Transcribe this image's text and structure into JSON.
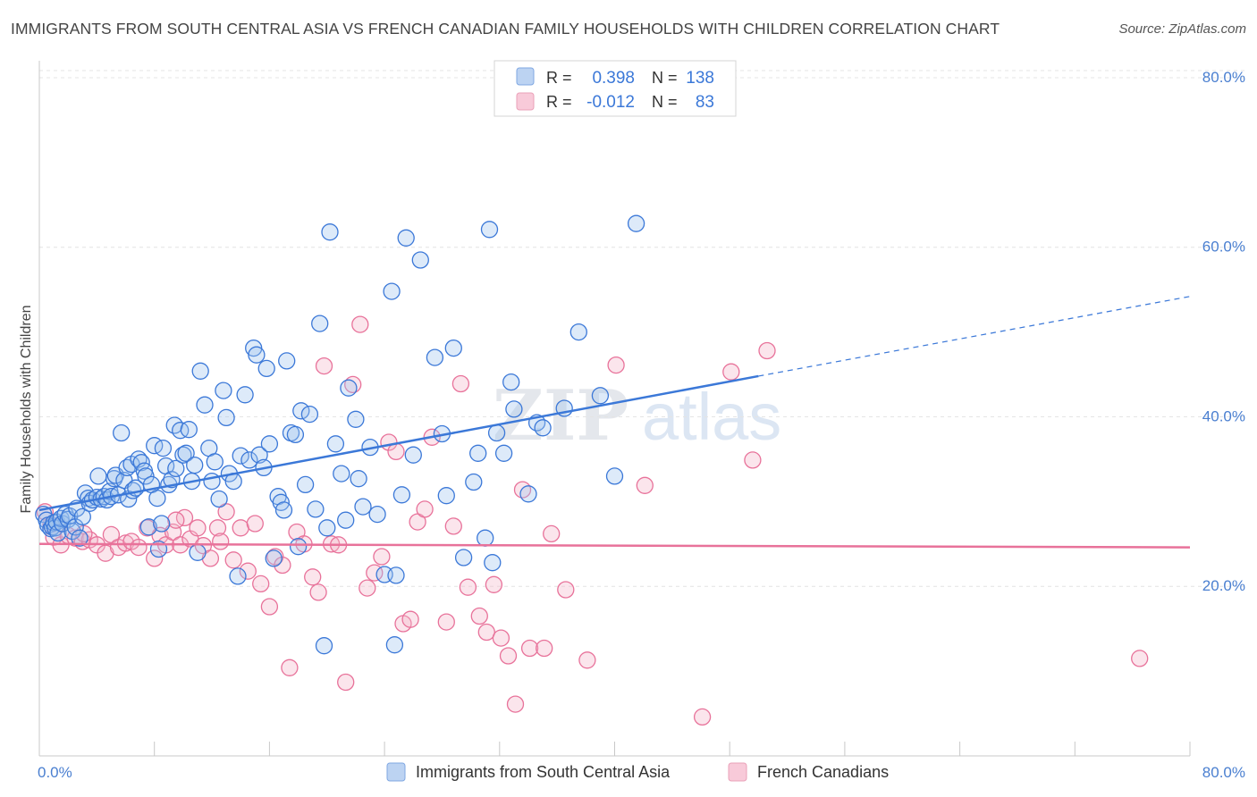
{
  "title": "IMMIGRANTS FROM SOUTH CENTRAL ASIA VS FRENCH CANADIAN FAMILY HOUSEHOLDS WITH CHILDREN CORRELATION CHART",
  "source": "Source: ZipAtlas.com",
  "watermark": {
    "zip": "ZIP",
    "atlas": "atlas"
  },
  "colors": {
    "blue": "#3b78d8",
    "blue_fill": "#9fc2ee",
    "pink": "#e8729a",
    "pink_fill": "#f4b4c8",
    "axis_label": "#4a7fd0",
    "grid": "#e4e4e4"
  },
  "legend": {
    "r_label": "R =",
    "n_label": "N =",
    "rows": [
      {
        "series": "blue",
        "r": "0.398",
        "n": "138"
      },
      {
        "series": "pink",
        "r": "-0.012",
        "n": "83"
      }
    ]
  },
  "chart_data": {
    "type": "scatter",
    "title": "IMMIGRANTS FROM SOUTH CENTRAL ASIA VS FRENCH CANADIAN FAMILY HOUSEHOLDS WITH CHILDREN CORRELATION CHART",
    "xlabel": "",
    "ylabel": "Family Households with Children",
    "xlim": [
      0,
      80
    ],
    "ylim": [
      0,
      82
    ],
    "x_tick_labels": [
      "0.0%",
      "80.0%"
    ],
    "y_ticks": [
      20,
      40,
      60,
      80
    ],
    "y_tick_labels": [
      "20.0%",
      "40.0%",
      "60.0%",
      "80.0%"
    ],
    "legend_position": "top-center",
    "bottom_legend": [
      "Immigrants from South Central Asia",
      "French Canadians"
    ],
    "series": [
      {
        "name": "Immigrants from South Central Asia",
        "color": "#3b78d8",
        "r": 0.398,
        "n": 138,
        "trend": {
          "x": [
            0,
            50
          ],
          "y": [
            29.0,
            44.8
          ],
          "dashed_to": {
            "x": 80,
            "y": 54.2
          }
        },
        "points": [
          [
            0.3,
            28.5
          ],
          [
            0.5,
            27.8
          ],
          [
            0.6,
            27.2
          ],
          [
            0.8,
            26.8
          ],
          [
            0.9,
            27.0
          ],
          [
            1.0,
            27.5
          ],
          [
            1.1,
            26.9
          ],
          [
            1.2,
            27.6
          ],
          [
            1.3,
            26.3
          ],
          [
            1.5,
            28.0
          ],
          [
            1.6,
            27.4
          ],
          [
            1.8,
            28.5
          ],
          [
            2.0,
            27.9
          ],
          [
            2.1,
            28.3
          ],
          [
            2.3,
            26.5
          ],
          [
            2.5,
            27.0
          ],
          [
            2.6,
            29.2
          ],
          [
            2.8,
            25.7
          ],
          [
            3.0,
            28.2
          ],
          [
            3.2,
            31.0
          ],
          [
            3.4,
            30.4
          ],
          [
            3.5,
            29.8
          ],
          [
            3.7,
            30.2
          ],
          [
            4.0,
            30.5
          ],
          [
            4.1,
            33.0
          ],
          [
            4.3,
            30.3
          ],
          [
            4.5,
            30.6
          ],
          [
            4.7,
            30.2
          ],
          [
            4.9,
            31.2
          ],
          [
            5.0,
            30.6
          ],
          [
            5.2,
            32.7
          ],
          [
            5.3,
            33.1
          ],
          [
            5.5,
            30.8
          ],
          [
            5.7,
            38.1
          ],
          [
            5.9,
            32.5
          ],
          [
            6.1,
            34.0
          ],
          [
            6.2,
            30.3
          ],
          [
            6.4,
            34.4
          ],
          [
            6.5,
            31.3
          ],
          [
            6.7,
            31.6
          ],
          [
            6.9,
            35.0
          ],
          [
            7.1,
            34.6
          ],
          [
            7.3,
            33.6
          ],
          [
            7.4,
            33.0
          ],
          [
            7.6,
            27.0
          ],
          [
            7.8,
            32.0
          ],
          [
            8.0,
            36.6
          ],
          [
            8.2,
            30.4
          ],
          [
            8.3,
            24.4
          ],
          [
            8.5,
            27.4
          ],
          [
            8.6,
            36.3
          ],
          [
            8.8,
            34.2
          ],
          [
            9.0,
            32.0
          ],
          [
            9.2,
            32.6
          ],
          [
            9.4,
            39.0
          ],
          [
            9.5,
            33.9
          ],
          [
            9.8,
            38.4
          ],
          [
            10.0,
            35.5
          ],
          [
            10.2,
            35.7
          ],
          [
            10.4,
            38.5
          ],
          [
            10.6,
            32.4
          ],
          [
            10.8,
            34.3
          ],
          [
            11.0,
            24.0
          ],
          [
            11.2,
            45.4
          ],
          [
            11.5,
            41.4
          ],
          [
            11.8,
            36.3
          ],
          [
            12.0,
            32.4
          ],
          [
            12.2,
            34.7
          ],
          [
            12.5,
            30.3
          ],
          [
            12.8,
            43.1
          ],
          [
            13.0,
            39.9
          ],
          [
            13.2,
            33.3
          ],
          [
            13.5,
            32.4
          ],
          [
            13.8,
            21.2
          ],
          [
            14.0,
            35.4
          ],
          [
            14.3,
            42.6
          ],
          [
            14.6,
            34.9
          ],
          [
            14.9,
            48.1
          ],
          [
            15.1,
            47.3
          ],
          [
            15.3,
            35.5
          ],
          [
            15.6,
            34.0
          ],
          [
            15.8,
            45.7
          ],
          [
            16.0,
            36.8
          ],
          [
            16.3,
            23.3
          ],
          [
            16.6,
            30.6
          ],
          [
            16.8,
            29.9
          ],
          [
            17.0,
            29.0
          ],
          [
            17.2,
            46.6
          ],
          [
            17.5,
            38.1
          ],
          [
            17.8,
            37.9
          ],
          [
            18.0,
            24.7
          ],
          [
            18.2,
            40.7
          ],
          [
            18.5,
            32.0
          ],
          [
            18.8,
            40.3
          ],
          [
            19.2,
            29.1
          ],
          [
            19.5,
            51.0
          ],
          [
            20.0,
            26.9
          ],
          [
            20.2,
            61.8
          ],
          [
            20.6,
            36.8
          ],
          [
            21.0,
            33.3
          ],
          [
            21.3,
            27.8
          ],
          [
            21.5,
            43.4
          ],
          [
            22.0,
            39.7
          ],
          [
            22.2,
            32.7
          ],
          [
            22.5,
            29.4
          ],
          [
            23.0,
            36.4
          ],
          [
            23.5,
            28.5
          ],
          [
            24.0,
            21.4
          ],
          [
            24.5,
            54.8
          ],
          [
            24.8,
            21.3
          ],
          [
            25.2,
            30.8
          ],
          [
            25.5,
            61.1
          ],
          [
            26.0,
            35.5
          ],
          [
            26.5,
            58.5
          ],
          [
            27.5,
            47.0
          ],
          [
            28.0,
            38.0
          ],
          [
            28.3,
            30.7
          ],
          [
            28.8,
            48.1
          ],
          [
            29.5,
            23.4
          ],
          [
            30.2,
            32.3
          ],
          [
            30.5,
            35.7
          ],
          [
            31.0,
            25.7
          ],
          [
            31.3,
            62.1
          ],
          [
            31.5,
            22.8
          ],
          [
            31.8,
            38.1
          ],
          [
            32.3,
            35.7
          ],
          [
            32.8,
            44.1
          ],
          [
            33.0,
            40.9
          ],
          [
            34.0,
            30.9
          ],
          [
            34.6,
            39.3
          ],
          [
            35.0,
            38.7
          ],
          [
            36.5,
            41.0
          ],
          [
            37.5,
            50.0
          ],
          [
            39.0,
            42.5
          ],
          [
            40.0,
            33.0
          ],
          [
            41.5,
            62.8
          ],
          [
            24.7,
            13.1
          ],
          [
            19.8,
            13.0
          ]
        ]
      },
      {
        "name": "French Canadians",
        "color": "#e8729a",
        "r": -0.012,
        "n": 83,
        "trend": {
          "x": [
            0,
            80
          ],
          "y": [
            25.0,
            24.6
          ]
        },
        "points": [
          [
            0.4,
            28.8
          ],
          [
            0.8,
            27.3
          ],
          [
            1.0,
            25.8
          ],
          [
            1.5,
            24.9
          ],
          [
            2.0,
            26.0
          ],
          [
            2.5,
            25.7
          ],
          [
            3.0,
            25.3
          ],
          [
            3.5,
            25.5
          ],
          [
            4.0,
            24.9
          ],
          [
            4.6,
            23.9
          ],
          [
            5.0,
            26.1
          ],
          [
            5.5,
            24.6
          ],
          [
            6.0,
            25.1
          ],
          [
            6.4,
            25.3
          ],
          [
            6.9,
            24.6
          ],
          [
            7.5,
            26.9
          ],
          [
            8.0,
            23.3
          ],
          [
            8.4,
            26.0
          ],
          [
            8.8,
            24.9
          ],
          [
            9.3,
            26.4
          ],
          [
            9.8,
            24.9
          ],
          [
            10.1,
            28.1
          ],
          [
            10.5,
            25.6
          ],
          [
            11.0,
            26.9
          ],
          [
            11.4,
            24.8
          ],
          [
            11.9,
            23.3
          ],
          [
            12.4,
            26.9
          ],
          [
            13.0,
            28.8
          ],
          [
            13.5,
            23.1
          ],
          [
            14.0,
            26.9
          ],
          [
            14.5,
            21.8
          ],
          [
            15.0,
            27.4
          ],
          [
            15.4,
            20.3
          ],
          [
            16.0,
            17.6
          ],
          [
            16.4,
            23.5
          ],
          [
            16.9,
            22.5
          ],
          [
            17.4,
            10.4
          ],
          [
            17.9,
            26.4
          ],
          [
            18.4,
            25.0
          ],
          [
            19.0,
            21.1
          ],
          [
            19.4,
            19.3
          ],
          [
            19.8,
            46.0
          ],
          [
            20.3,
            25.0
          ],
          [
            20.8,
            24.9
          ],
          [
            21.3,
            8.7
          ],
          [
            21.8,
            43.8
          ],
          [
            22.3,
            50.9
          ],
          [
            22.8,
            19.8
          ],
          [
            23.3,
            21.6
          ],
          [
            23.8,
            23.5
          ],
          [
            24.3,
            37.0
          ],
          [
            24.8,
            35.9
          ],
          [
            25.3,
            15.6
          ],
          [
            25.8,
            16.1
          ],
          [
            26.3,
            27.6
          ],
          [
            26.8,
            29.1
          ],
          [
            27.3,
            37.6
          ],
          [
            28.3,
            15.8
          ],
          [
            28.8,
            27.1
          ],
          [
            29.3,
            43.9
          ],
          [
            29.8,
            19.9
          ],
          [
            30.6,
            16.5
          ],
          [
            31.1,
            14.6
          ],
          [
            31.6,
            20.2
          ],
          [
            32.1,
            13.9
          ],
          [
            32.6,
            11.8
          ],
          [
            33.1,
            6.1
          ],
          [
            33.6,
            31.4
          ],
          [
            34.1,
            12.7
          ],
          [
            35.1,
            12.7
          ],
          [
            35.6,
            26.2
          ],
          [
            36.6,
            19.6
          ],
          [
            38.1,
            11.3
          ],
          [
            40.1,
            46.1
          ],
          [
            42.1,
            31.9
          ],
          [
            46.1,
            4.6
          ],
          [
            48.1,
            45.3
          ],
          [
            49.6,
            34.9
          ],
          [
            50.6,
            47.8
          ],
          [
            76.5,
            11.5
          ],
          [
            3.1,
            26.2
          ],
          [
            9.5,
            27.8
          ],
          [
            12.6,
            25.3
          ]
        ]
      }
    ]
  }
}
